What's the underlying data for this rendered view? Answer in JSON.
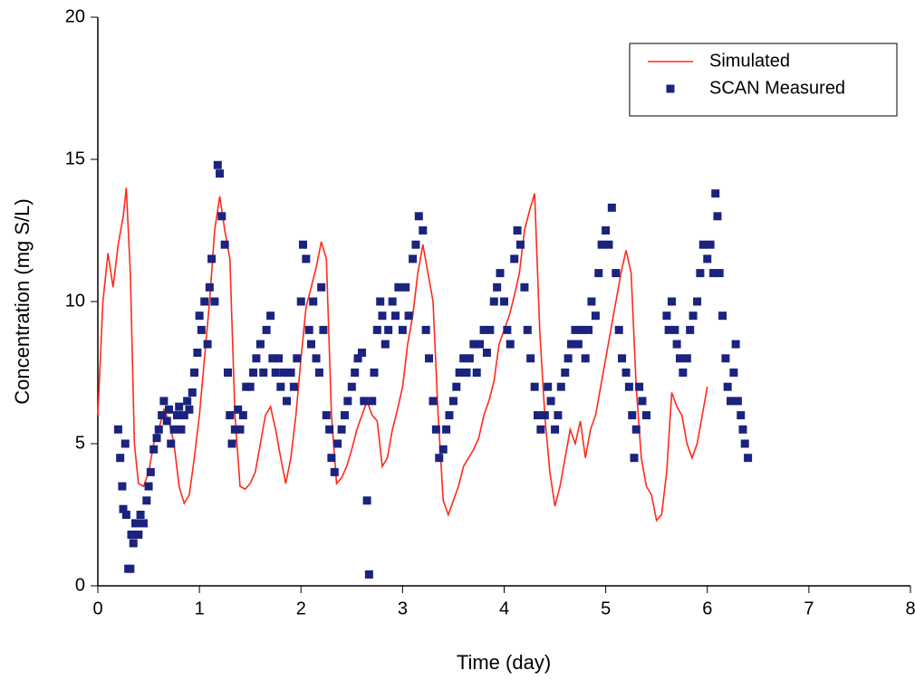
{
  "chart_data": {
    "type": "line",
    "xlabel": "Time (day)",
    "ylabel": "Concentration (mg S/L)",
    "xlim": [
      0,
      8
    ],
    "xticks": [
      0,
      1,
      2,
      3,
      4,
      5,
      6,
      7,
      8
    ],
    "ylim": [
      0,
      20
    ],
    "yticks": [
      0,
      5,
      10,
      15,
      20
    ],
    "legend": "upper right",
    "series": [
      {
        "name": "Simulated",
        "type": "line",
        "color": "#ff2a1a",
        "x": [
          0,
          0.05,
          0.1,
          0.15,
          0.2,
          0.25,
          0.28,
          0.32,
          0.36,
          0.4,
          0.45,
          0.5,
          0.55,
          0.6,
          0.65,
          0.7,
          0.75,
          0.8,
          0.85,
          0.9,
          0.95,
          1.0,
          1.05,
          1.1,
          1.15,
          1.2,
          1.25,
          1.3,
          1.35,
          1.4,
          1.45,
          1.5,
          1.55,
          1.6,
          1.65,
          1.7,
          1.75,
          1.8,
          1.85,
          1.9,
          1.95,
          2.0,
          2.05,
          2.1,
          2.15,
          2.2,
          2.25,
          2.3,
          2.35,
          2.4,
          2.45,
          2.5,
          2.55,
          2.6,
          2.65,
          2.7,
          2.75,
          2.8,
          2.85,
          2.9,
          2.95,
          3.0,
          3.05,
          3.1,
          3.15,
          3.2,
          3.25,
          3.3,
          3.35,
          3.4,
          3.45,
          3.5,
          3.55,
          3.6,
          3.65,
          3.7,
          3.75,
          3.8,
          3.85,
          3.9,
          3.95,
          4.0,
          4.05,
          4.1,
          4.15,
          4.2,
          4.25,
          4.3,
          4.35,
          4.4,
          4.45,
          4.5,
          4.55,
          4.6,
          4.65,
          4.7,
          4.75,
          4.8,
          4.85,
          4.9,
          4.95,
          5.0,
          5.05,
          5.1,
          5.15,
          5.2,
          5.25,
          5.3,
          5.35,
          5.4,
          5.45,
          5.5,
          5.55,
          5.6,
          5.65,
          5.7,
          5.75,
          5.8,
          5.85,
          5.9,
          5.95,
          6.0
        ],
        "values": [
          6,
          10,
          11.7,
          10.5,
          12,
          13,
          14,
          11,
          5,
          3.6,
          3.5,
          4,
          5,
          5.5,
          6.2,
          5.8,
          5,
          3.5,
          2.9,
          3.2,
          4.5,
          6,
          8,
          10,
          12.5,
          13.7,
          12.5,
          11.5,
          6,
          3.5,
          3.4,
          3.6,
          4,
          5,
          6,
          6.3,
          5.5,
          4.5,
          3.6,
          4.5,
          6,
          8,
          9.8,
          10.5,
          11.2,
          12.1,
          11.5,
          6,
          3.6,
          3.8,
          4.2,
          4.8,
          5.5,
          6,
          6.5,
          6,
          5.8,
          4.2,
          4.5,
          5.5,
          6.2,
          7,
          8.5,
          9.5,
          11,
          12,
          11,
          10,
          6,
          3,
          2.5,
          3,
          3.5,
          4.2,
          4.5,
          4.8,
          5.2,
          6,
          6.5,
          7.2,
          8.5,
          9,
          9.5,
          10.2,
          11,
          12.5,
          13.2,
          13.8,
          9,
          6,
          4,
          2.8,
          3.5,
          4.5,
          5.5,
          5,
          5.8,
          4.5,
          5.5,
          6,
          7,
          8,
          9,
          10,
          11,
          11.8,
          11,
          7,
          4.5,
          3.5,
          3.2,
          2.3,
          2.5,
          4,
          6.8,
          6.3,
          6,
          5,
          4.5,
          5,
          6,
          7
        ]
      },
      {
        "name": "SCAN Measured",
        "type": "scatter",
        "color": "#1a237e",
        "x": [
          0.2,
          0.22,
          0.24,
          0.25,
          0.27,
          0.28,
          0.3,
          0.32,
          0.33,
          0.35,
          0.37,
          0.4,
          0.42,
          0.45,
          0.48,
          0.5,
          0.52,
          0.55,
          0.58,
          0.6,
          0.63,
          0.65,
          0.68,
          0.7,
          0.72,
          0.75,
          0.78,
          0.8,
          0.82,
          0.85,
          0.88,
          0.9,
          0.93,
          0.95,
          0.98,
          1.0,
          1.02,
          1.05,
          1.08,
          1.1,
          1.12,
          1.15,
          1.18,
          1.2,
          1.22,
          1.25,
          1.28,
          1.3,
          1.32,
          1.35,
          1.38,
          1.4,
          1.43,
          1.46,
          1.5,
          1.53,
          1.56,
          1.6,
          1.63,
          1.66,
          1.7,
          1.72,
          1.75,
          1.78,
          1.8,
          1.83,
          1.86,
          1.9,
          1.93,
          1.96,
          2.0,
          2.02,
          2.05,
          2.08,
          2.1,
          2.12,
          2.15,
          2.18,
          2.2,
          2.22,
          2.25,
          2.28,
          2.3,
          2.33,
          2.36,
          2.4,
          2.43,
          2.46,
          2.5,
          2.53,
          2.56,
          2.6,
          2.62,
          2.65,
          2.67,
          2.7,
          2.72,
          2.75,
          2.78,
          2.8,
          2.83,
          2.86,
          2.9,
          2.93,
          2.96,
          3.0,
          3.03,
          3.06,
          3.1,
          3.13,
          3.16,
          3.2,
          3.23,
          3.26,
          3.3,
          3.33,
          3.36,
          3.4,
          3.43,
          3.46,
          3.5,
          3.53,
          3.56,
          3.6,
          3.63,
          3.66,
          3.7,
          3.73,
          3.76,
          3.8,
          3.83,
          3.86,
          3.9,
          3.93,
          3.96,
          4.0,
          4.03,
          4.06,
          4.1,
          4.13,
          4.16,
          4.2,
          4.23,
          4.26,
          4.3,
          4.33,
          4.36,
          4.4,
          4.43,
          4.46,
          4.5,
          4.53,
          4.56,
          4.6,
          4.63,
          4.66,
          4.7,
          4.73,
          4.76,
          4.8,
          4.83,
          4.86,
          4.9,
          4.93,
          4.96,
          5.0,
          5.03,
          5.06,
          5.1,
          5.13,
          5.16,
          5.2,
          5.23,
          5.26,
          5.28,
          5.3,
          5.33,
          5.36,
          5.4,
          5.6,
          5.62,
          5.65,
          5.68,
          5.7,
          5.73,
          5.76,
          5.8,
          5.83,
          5.86,
          5.9,
          5.93,
          5.96,
          6.0,
          6.03,
          6.06,
          6.08,
          6.1,
          6.12,
          6.15,
          6.18,
          6.2,
          6.23,
          6.26,
          6.28,
          6.3,
          6.33,
          6.35,
          6.37,
          6.4
        ],
        "values": [
          5.5,
          4.5,
          3.5,
          2.7,
          5,
          2.5,
          0.6,
          0.6,
          1.8,
          1.5,
          2.2,
          1.8,
          2.5,
          2.2,
          3,
          3.5,
          4,
          4.8,
          5.2,
          5.5,
          6,
          6.5,
          5.8,
          6.2,
          5,
          5.5,
          6,
          6.3,
          5.5,
          6,
          6.5,
          6.2,
          6.8,
          7.5,
          8.2,
          9.5,
          9,
          10,
          8.5,
          10.5,
          11.5,
          10,
          14.8,
          14.5,
          13,
          12,
          7.5,
          6,
          5,
          5.5,
          6.2,
          5.5,
          6,
          7,
          7,
          7.5,
          8,
          8.5,
          7.5,
          9,
          9.5,
          8,
          7.5,
          8,
          7,
          7.5,
          6.5,
          7.5,
          7,
          8,
          10,
          12,
          11.5,
          9,
          8.5,
          10,
          8,
          7.5,
          10.5,
          9,
          6,
          5.5,
          4.5,
          4,
          5,
          5.5,
          6,
          6.5,
          7,
          7.5,
          8,
          8.2,
          6.5,
          3,
          0.4,
          6.5,
          7.5,
          9,
          10,
          9.5,
          8.5,
          9,
          10,
          9.5,
          10.5,
          9,
          10.5,
          9.5,
          11.5,
          12,
          13,
          12.5,
          9,
          8,
          6.5,
          5.5,
          4.5,
          4.8,
          5.5,
          6,
          6.5,
          7,
          7.5,
          8,
          7.5,
          8,
          8.5,
          7.5,
          8.5,
          9,
          8.2,
          9,
          10,
          10.5,
          11,
          10,
          9,
          8.5,
          11.5,
          12.5,
          12,
          10.5,
          9,
          8,
          7,
          6,
          5.5,
          6,
          7,
          6.5,
          5.5,
          6,
          7,
          7.5,
          8,
          8.5,
          9,
          8.5,
          9,
          8,
          9,
          10,
          9.5,
          11,
          12,
          12.5,
          12,
          13.3,
          11,
          9,
          8,
          7.5,
          7,
          6,
          4.5,
          5.5,
          7,
          6.5,
          6,
          9.5,
          9,
          10,
          9,
          8.5,
          8,
          7.5,
          8,
          9,
          9.5,
          10,
          11,
          12,
          11.5,
          12,
          11,
          13.8,
          13,
          11,
          9.5,
          8,
          7,
          6.5,
          7.5,
          8.5,
          6.5,
          6,
          5.5,
          5,
          4.5
        ]
      }
    ]
  }
}
